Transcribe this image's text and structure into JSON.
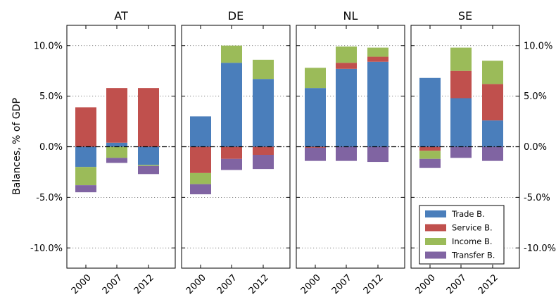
{
  "chart_data": {
    "type": "bar",
    "stacked": true,
    "ylabel": "Balances, % of GDP",
    "ylim": [
      -12,
      12
    ],
    "yticks": [
      -10,
      -5,
      0,
      5,
      10
    ],
    "ytick_labels": [
      "-10.0%",
      "-5.0%",
      "0.0%",
      "5.0%",
      "10.0%"
    ],
    "grid": true,
    "legend_position": "lower-right",
    "categories": [
      "2000",
      "2007",
      "2012"
    ],
    "colors": {
      "Trade B.": "#4a7ebb",
      "Service B.": "#c0504d",
      "Income B.": "#9bbb59",
      "Transfer B.": "#8064a2"
    },
    "series_names": [
      "Trade B.",
      "Service B.",
      "Income B.",
      "Transfer B."
    ],
    "panels": [
      {
        "title": "AT",
        "series": [
          {
            "name": "Trade B.",
            "values": [
              -2.0,
              0.4,
              -1.8
            ]
          },
          {
            "name": "Service B.",
            "values": [
              3.9,
              5.4,
              5.8
            ]
          },
          {
            "name": "Income B.",
            "values": [
              -1.8,
              -1.1,
              -0.1
            ]
          },
          {
            "name": "Transfer B.",
            "values": [
              -0.7,
              -0.5,
              -0.8
            ]
          }
        ]
      },
      {
        "title": "DE",
        "series": [
          {
            "name": "Trade B.",
            "values": [
              3.0,
              8.3,
              6.7
            ]
          },
          {
            "name": "Service B.",
            "values": [
              -2.6,
              -1.2,
              -0.8
            ]
          },
          {
            "name": "Income B.",
            "values": [
              -1.1,
              1.7,
              1.9
            ]
          },
          {
            "name": "Transfer B.",
            "values": [
              -1.0,
              -1.1,
              -1.4
            ]
          }
        ]
      },
      {
        "title": "NL",
        "series": [
          {
            "name": "Trade B.",
            "values": [
              5.8,
              7.7,
              8.4
            ]
          },
          {
            "name": "Service B.",
            "values": [
              -0.1,
              0.6,
              0.5
            ]
          },
          {
            "name": "Income B.",
            "values": [
              2.0,
              1.6,
              0.9
            ]
          },
          {
            "name": "Transfer B.",
            "values": [
              -1.3,
              -1.4,
              -1.5
            ]
          }
        ]
      },
      {
        "title": "SE",
        "series": [
          {
            "name": "Trade B.",
            "values": [
              6.8,
              4.8,
              2.6
            ]
          },
          {
            "name": "Service B.",
            "values": [
              -0.4,
              2.7,
              3.6
            ]
          },
          {
            "name": "Income B.",
            "values": [
              -0.8,
              2.3,
              2.3
            ]
          },
          {
            "name": "Transfer B.",
            "values": [
              -0.9,
              -1.1,
              -1.4
            ]
          }
        ]
      }
    ]
  }
}
